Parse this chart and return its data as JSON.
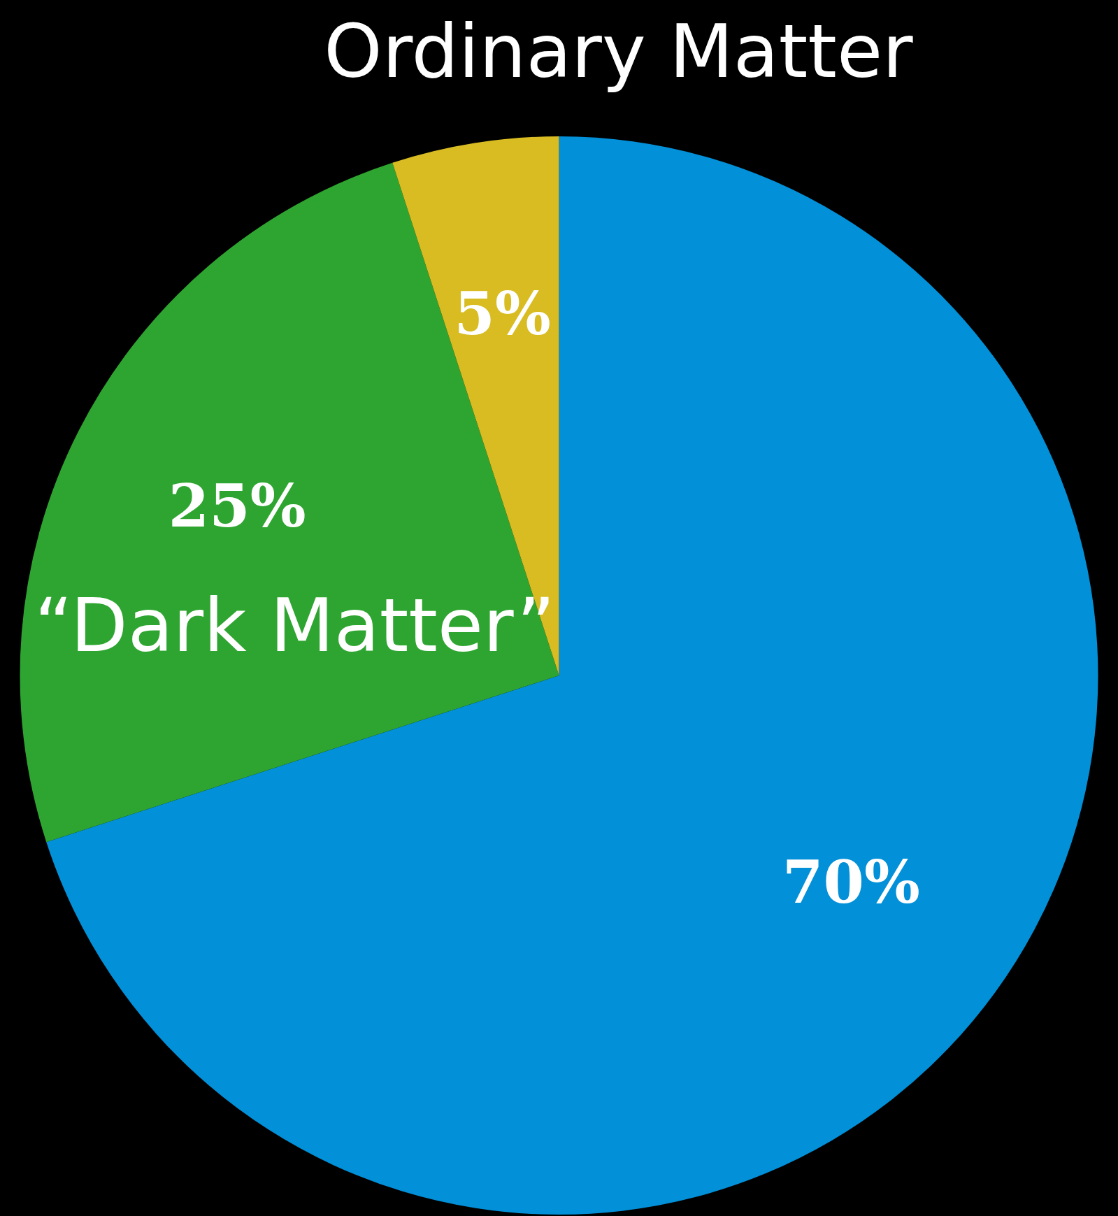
{
  "chart_data": {
    "type": "pie",
    "categories": [
      null,
      "“Dark Matter”",
      "Ordinary Matter"
    ],
    "values": [
      70,
      25,
      5
    ],
    "colors": [
      "#0290d8",
      "#2fa531",
      "#d8bc22"
    ],
    "value_labels": [
      "70%",
      "25%",
      "5%"
    ],
    "legend": false
  }
}
